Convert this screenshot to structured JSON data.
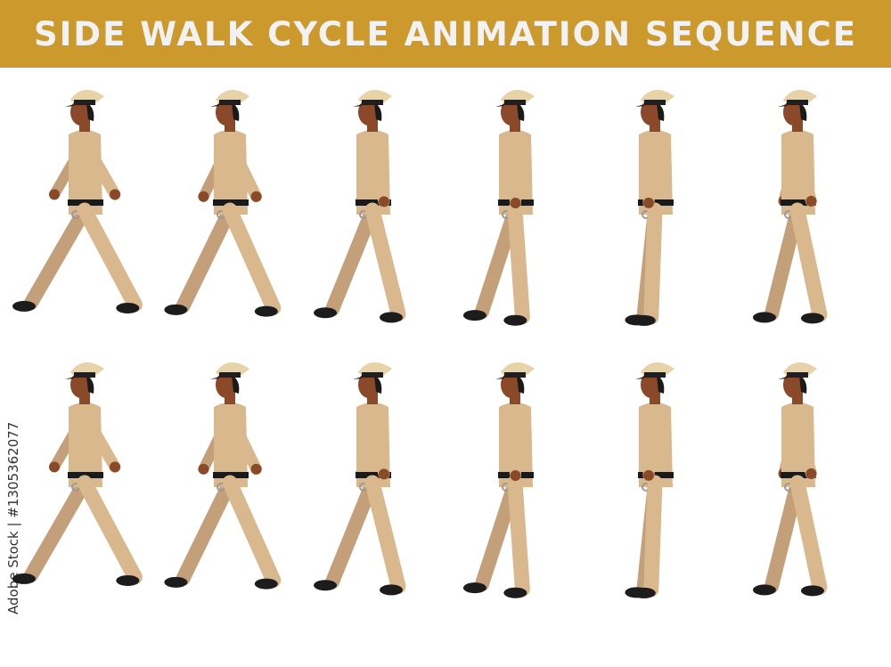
{
  "banner": {
    "title": "SIDE WALK CYCLE ANIMATION SEQUENCE"
  },
  "watermark": {
    "text": "Adobe Stock | #1305362077"
  },
  "colors": {
    "banner": "#CC9A2C",
    "uniform": "#D9B88E",
    "uniform_shade": "#C4A07A",
    "skin": "#8A4A2A",
    "hair": "#1A1A1A",
    "cap_top": "#E8D2A8",
    "cap_band": "#1F1F1F",
    "shoes": "#1C1C1C",
    "belt": "#1A1A1A"
  }
}
